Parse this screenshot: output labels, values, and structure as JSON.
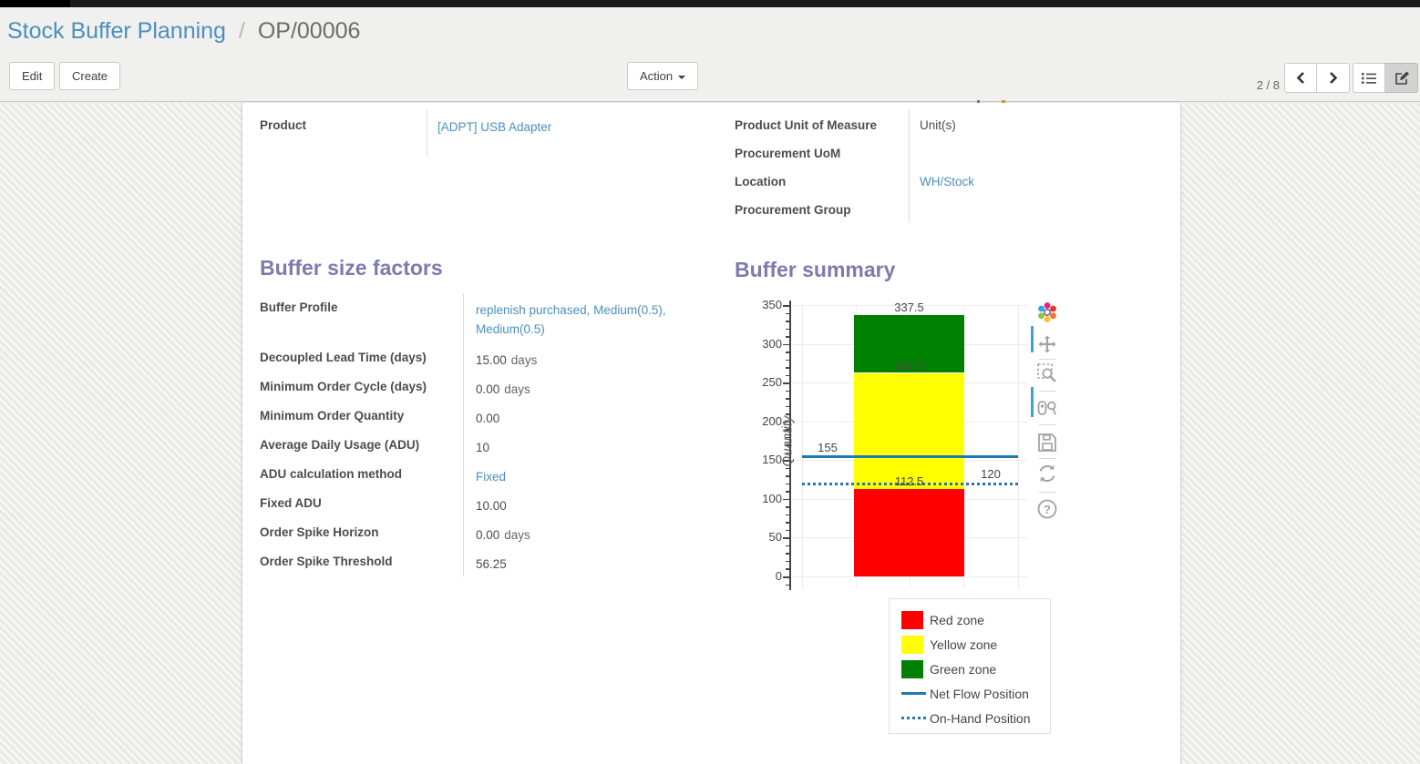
{
  "breadcrumb": {
    "parent": "Stock Buffer Planning",
    "separator": "/",
    "current": "OP/00006"
  },
  "toolbar": {
    "edit": "Edit",
    "create": "Create",
    "action": "Action"
  },
  "pager": {
    "text": "2 / 8"
  },
  "view_switcher": {
    "views": [
      "list",
      "form"
    ],
    "active": "form"
  },
  "form": {
    "left_fields": [
      {
        "label": "Product",
        "value": "[ADPT] USB Adapter",
        "link": true
      }
    ],
    "right_fields": [
      {
        "label": "Product Unit of Measure",
        "value": "Unit(s)",
        "link": false
      },
      {
        "label": "Procurement UoM",
        "value": "",
        "link": false
      },
      {
        "label": "Location",
        "value": "WH/Stock",
        "link": true
      },
      {
        "label": "Procurement Group",
        "value": "",
        "link": false
      }
    ],
    "buffer_factors": {
      "heading": "Buffer size factors",
      "rows": [
        {
          "label": "Buffer Profile",
          "value": "replenish purchased, Medium(0.5), Medium(0.5)",
          "unit": "",
          "link": true
        },
        {
          "label": "Decoupled Lead Time (days)",
          "value": "15.00",
          "unit": "days",
          "link": false
        },
        {
          "label": "Minimum Order Cycle (days)",
          "value": "0.00",
          "unit": "days",
          "link": false
        },
        {
          "label": "Minimum Order Quantity",
          "value": "0.00",
          "unit": "",
          "link": false
        },
        {
          "label": "Average Daily Usage (ADU)",
          "value": "10",
          "unit": "",
          "link": false
        },
        {
          "label": "ADU calculation method",
          "value": "Fixed",
          "unit": "",
          "link": true
        },
        {
          "label": "Fixed ADU",
          "value": "10.00",
          "unit": "",
          "link": false
        },
        {
          "label": "Order Spike Horizon",
          "value": "0.00",
          "unit": "days",
          "link": false
        },
        {
          "label": "Order Spike Threshold",
          "value": "56.25",
          "unit": "",
          "link": false
        }
      ]
    },
    "buffer_summary_heading": "Buffer summary"
  },
  "chart_data": {
    "type": "bar",
    "title": "Buffer summary",
    "xlabel": "",
    "ylabel": "Quantity",
    "ylim": [
      0,
      350
    ],
    "yticks": [
      0,
      50,
      100,
      150,
      200,
      250,
      300,
      350
    ],
    "minor_tick_step": 10,
    "grid": true,
    "categories": [
      ""
    ],
    "series": [
      {
        "name": "Red zone",
        "color": "#ff0000",
        "from": 0,
        "to": 112.5
      },
      {
        "name": "Yellow zone",
        "color": "#ffff00",
        "from": 112.5,
        "to": 262.5
      },
      {
        "name": "Green zone",
        "color": "#008000",
        "from": 262.5,
        "to": 337.5
      }
    ],
    "lines": [
      {
        "name": "Net Flow Position",
        "value": 155,
        "style": "solid",
        "color": "#1f77b4"
      },
      {
        "name": "On-Hand Position",
        "value": 120,
        "style": "dotted",
        "color": "#1f77b4"
      }
    ],
    "data_labels": {
      "bar_top": "337.5",
      "green_bottom": "262.5",
      "red_top": "112.5",
      "net_flow": "155",
      "on_hand": "120"
    },
    "legend_position": "bottom-right",
    "legend_items": [
      {
        "name": "Red zone",
        "swatch": "square",
        "color": "#ff0000"
      },
      {
        "name": "Yellow zone",
        "swatch": "square",
        "color": "#ffff00"
      },
      {
        "name": "Green zone",
        "swatch": "square",
        "color": "#008000"
      },
      {
        "name": "Net Flow Position",
        "swatch": "line",
        "color": "#1f77b4"
      },
      {
        "name": "On-Hand Position",
        "swatch": "dots",
        "color": "#1f77b4"
      }
    ]
  },
  "modebar": {
    "icons": [
      "plotly-logo",
      "pan",
      "zoom-box",
      "compare-hover",
      "download-plot",
      "reset-axes",
      "help"
    ]
  },
  "colors": {
    "heading": "#7c7bad",
    "link": "#4c8fbf",
    "label": "#4c4c4c",
    "chart_blue": "#1f77b4",
    "red_zone": "#ff0000",
    "yellow_zone": "#ffff00",
    "green_zone": "#008000"
  }
}
